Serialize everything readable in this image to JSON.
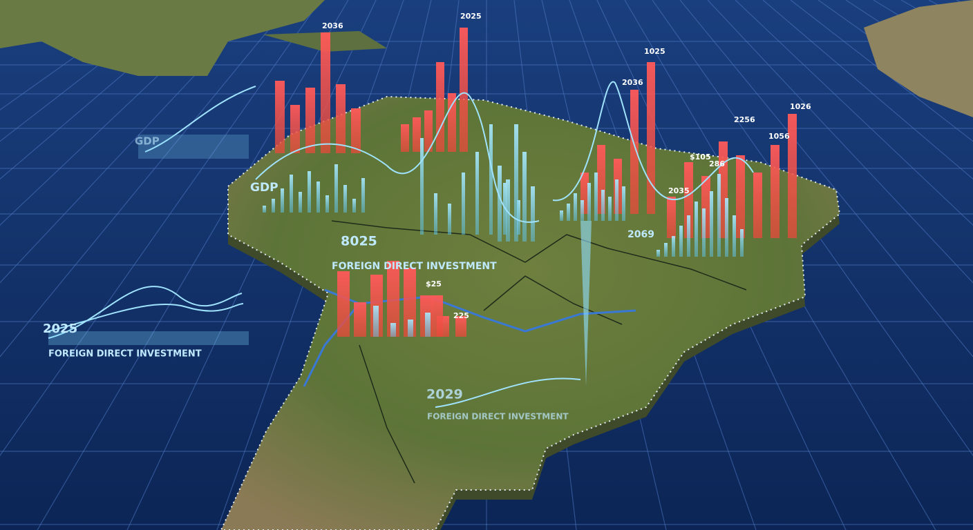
{
  "labels": {
    "gdp_left": "GDP",
    "gdp_map": "GDP",
    "top_a": "2036",
    "top_b": "2025",
    "top_right_a": "1025",
    "top_right_b": "2036",
    "right_a": "2256",
    "right_b": "1026",
    "right_c": "1056",
    "right_d": "$105",
    "right_e": "286",
    "right_f": "2035",
    "mid_right": "2069",
    "mid_year": "8025",
    "fdi_top": "FOREIGN DIRECT INVESTMENT",
    "left_year": "2025",
    "fdi_left": "FOREIGN DIRECT INVESTMENT",
    "bottom_year": "2029",
    "fdi_bottom": "FOREIGN DIRECT INVESTMENT",
    "small_a": "$25",
    "small_b": "225"
  }
}
